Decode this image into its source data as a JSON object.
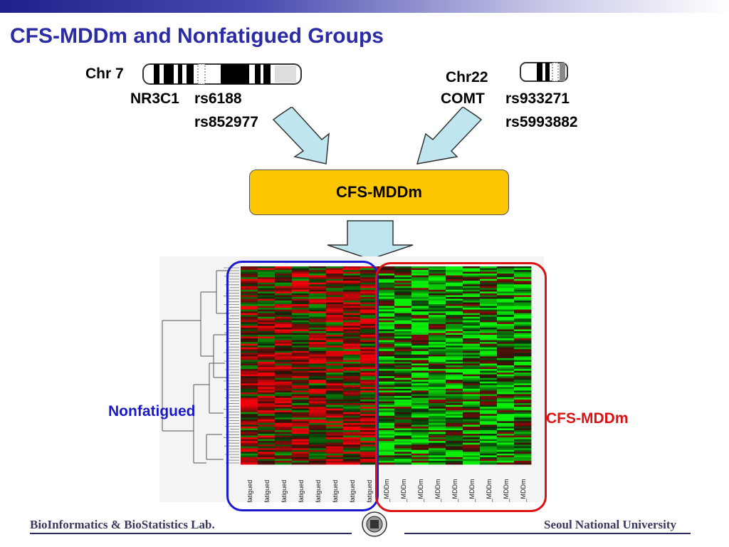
{
  "slide": {
    "title": "CFS-MDDm and Nonfatigued Groups"
  },
  "left_gene": {
    "chromosome": "Chr 7",
    "gene": "NR3C1",
    "snp1": "rs6188",
    "snp2": "rs852977"
  },
  "right_gene": {
    "chromosome": "Chr22",
    "gene": "COMT",
    "snp1": "rs933271",
    "snp2": "rs5993882"
  },
  "center_box": {
    "label": "CFS-MDDm",
    "color": "#fcc600"
  },
  "heatmap": {
    "column_labels": [
      "Nonfatigued",
      "Nonfatigued",
      "Nonfatigued",
      "Nonfatigued",
      "Nonfatigued",
      "Nonfatigued",
      "Nonfatigued",
      "Nonfatigued",
      "CFS_MDDm",
      "CFS_MDDm",
      "CFS_MDDm",
      "CFS_MDDm",
      "CFS_MDDm",
      "CFS_MDDm",
      "CFS_MDDm",
      "CFS_MDDm",
      "CFS_MDDm"
    ],
    "colors": {
      "high": "#ff2020",
      "low": "#20e020",
      "mid": "#000000"
    }
  },
  "groups": {
    "nonfatigued": {
      "label": "Nonfatigued",
      "color": "#1a1acc"
    },
    "cfs": {
      "label": "CFS-MDDm",
      "color": "#dd1111"
    }
  },
  "footer": {
    "left": "BioInformatics & BioStatistics Lab.",
    "right": "Seoul National University"
  }
}
